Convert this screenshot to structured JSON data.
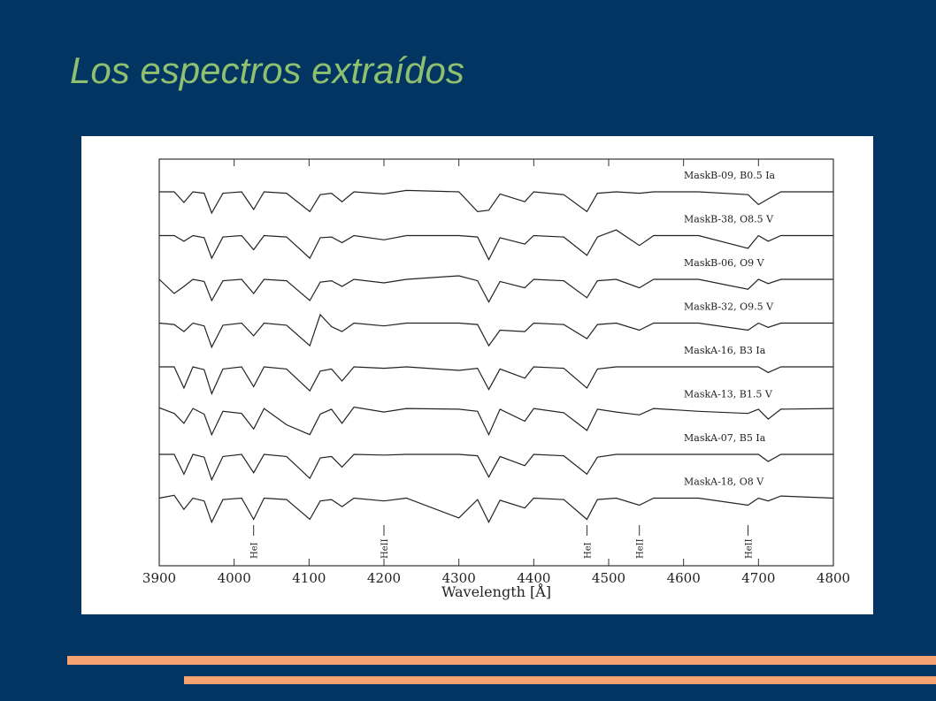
{
  "title": "Los espectros extraídos",
  "chart_data": {
    "type": "line",
    "xlabel": "Wavelength [Å]",
    "xlim": [
      3900,
      4800
    ],
    "xticks": [
      3900,
      4000,
      4100,
      4200,
      4300,
      4400,
      4500,
      4600,
      4700,
      4800
    ],
    "color": "#222222",
    "x": [
      3900,
      3920,
      3933,
      3945,
      3960,
      3970,
      3985,
      4010,
      4026,
      4040,
      4070,
      4101,
      4115,
      4130,
      4144,
      4160,
      4200,
      4230,
      4300,
      4325,
      4340,
      4355,
      4388,
      4400,
      4440,
      4471,
      4485,
      4510,
      4541,
      4560,
      4620,
      4686,
      4700,
      4713,
      4730,
      4800
    ],
    "series": [
      {
        "name": "MaskB-09, B0.5 Ia",
        "values": [
          1,
          1,
          0.85,
          1,
          0.98,
          0.7,
          0.98,
          1,
          0.75,
          1,
          0.98,
          0.72,
          0.96,
          0.98,
          0.86,
          1,
          0.97,
          1.02,
          1,
          0.72,
          0.74,
          0.97,
          0.86,
          1,
          0.96,
          0.72,
          0.98,
          1,
          0.98,
          1,
          1,
          0.96,
          0.82,
          0.9,
          1,
          1
        ]
      },
      {
        "name": "MaskB-38, O8.5 V",
        "values": [
          1,
          1,
          0.92,
          1,
          0.97,
          0.68,
          0.98,
          1,
          0.8,
          1,
          0.98,
          0.68,
          0.97,
          0.98,
          0.9,
          1,
          0.94,
          1,
          1,
          0.98,
          0.66,
          0.97,
          0.88,
          1,
          0.98,
          0.72,
          0.98,
          1.08,
          0.86,
          1,
          1,
          0.82,
          1,
          0.92,
          1,
          1
        ]
      },
      {
        "name": "MaskB-06, O9 V",
        "values": [
          1,
          0.8,
          0.9,
          1,
          0.97,
          0.7,
          0.98,
          1,
          0.8,
          1,
          0.98,
          0.7,
          0.96,
          0.98,
          0.9,
          1,
          0.95,
          1,
          1.05,
          0.98,
          0.68,
          0.97,
          0.88,
          1,
          0.98,
          0.74,
          0.98,
          1,
          0.88,
          1,
          1,
          0.86,
          1,
          0.94,
          1,
          1
        ]
      },
      {
        "name": "MaskB-32, O9.5 V",
        "values": [
          1,
          0.98,
          0.88,
          1,
          0.96,
          0.66,
          0.97,
          1,
          0.82,
          1,
          0.97,
          0.68,
          1.12,
          0.95,
          0.88,
          1,
          0.96,
          1,
          1,
          0.98,
          0.68,
          0.9,
          0.88,
          1,
          0.98,
          0.78,
          0.98,
          1,
          0.9,
          1,
          1,
          0.9,
          1,
          0.94,
          1,
          1
        ]
      },
      {
        "name": "MaskA-16, B3 Ia",
        "values": [
          1,
          1,
          0.7,
          1,
          0.96,
          0.62,
          0.97,
          1,
          0.72,
          1,
          0.97,
          0.66,
          0.94,
          0.97,
          0.8,
          1,
          0.98,
          1,
          0.95,
          0.98,
          0.68,
          0.97,
          0.84,
          1,
          0.98,
          0.7,
          0.97,
          1,
          1,
          1,
          1,
          1,
          1,
          0.92,
          1,
          1
        ]
      },
      {
        "name": "MaskA-13, B1.5 V",
        "values": [
          1.04,
          0.96,
          0.82,
          1.03,
          0.95,
          0.66,
          0.99,
          0.96,
          0.74,
          1.03,
          0.8,
          0.66,
          0.95,
          1.02,
          0.82,
          1.05,
          0.98,
          1.03,
          1.02,
          0.99,
          0.66,
          1.02,
          0.85,
          1.03,
          0.97,
          0.72,
          1.02,
          0.98,
          0.94,
          1.03,
          0.99,
          0.96,
          1.02,
          0.88,
          1.02,
          1.03
        ]
      },
      {
        "name": "MaskA-07, B5 Ia",
        "values": [
          1,
          1,
          0.72,
          1,
          0.96,
          0.64,
          0.97,
          1,
          0.74,
          1,
          0.97,
          0.66,
          0.95,
          0.97,
          0.82,
          1,
          0.99,
          1,
          1,
          0.98,
          0.68,
          0.97,
          0.84,
          1,
          0.98,
          0.72,
          0.96,
          1,
          1,
          1,
          1,
          1,
          1,
          0.9,
          1,
          1
        ]
      },
      {
        "name": "MaskA-18, O8 V",
        "values": [
          1,
          1.04,
          0.84,
          1,
          0.96,
          0.66,
          0.98,
          1,
          0.7,
          1,
          0.98,
          0.7,
          0.96,
          0.98,
          0.88,
          1,
          0.96,
          1,
          0.72,
          0.98,
          0.66,
          0.97,
          0.86,
          1,
          0.98,
          0.7,
          0.98,
          1,
          0.9,
          1,
          1,
          0.9,
          1,
          0.96,
          1.03,
          1
        ]
      }
    ],
    "line_ids": [
      {
        "label": "HeI",
        "x": 4026
      },
      {
        "label": "HeII",
        "x": 4200
      },
      {
        "label": "HeI",
        "x": 4471
      },
      {
        "label": "HeII",
        "x": 4541
      },
      {
        "label": "HeII",
        "x": 4686
      }
    ]
  }
}
